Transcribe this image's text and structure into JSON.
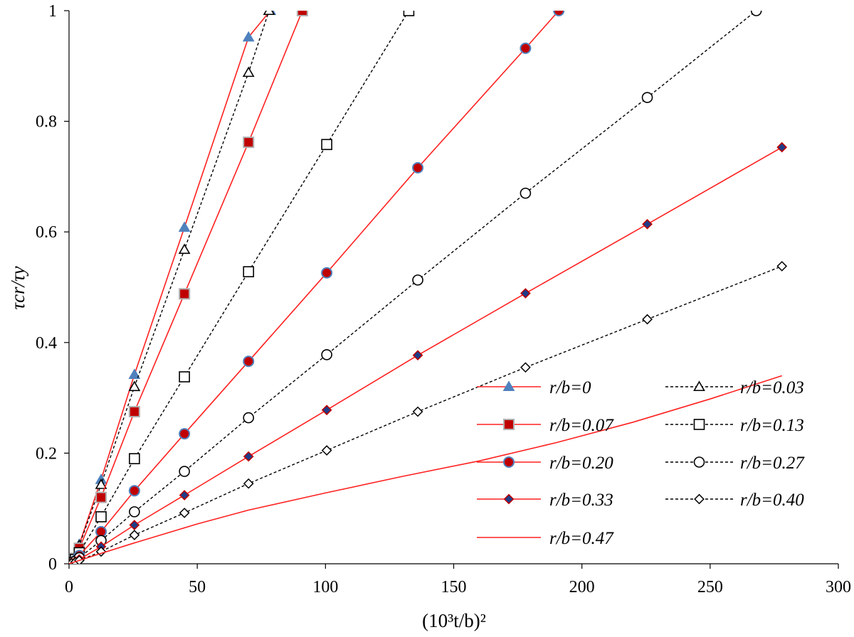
{
  "chart_data": {
    "type": "line",
    "title": "",
    "xlabel": "(10³t/b)²",
    "ylabel": "τcr/τy",
    "xlim": [
      0,
      300
    ],
    "ylim": [
      0,
      1
    ],
    "xticks": [
      "0",
      "50",
      "100",
      "150",
      "200",
      "250",
      "300"
    ],
    "yticks": [
      "0",
      "0.2",
      "0.4",
      "0.6",
      "0.8",
      "1"
    ],
    "grid": false,
    "legend_position": "bottom-right",
    "series": [
      {
        "name": "r/b=0",
        "color": "#ff2020",
        "line": "solid",
        "marker": "triangle",
        "marker_fill": "#4f81bd",
        "points": [
          [
            0,
            0
          ],
          [
            1,
            0.005
          ],
          [
            2.5,
            0.012
          ],
          [
            4,
            0.035
          ],
          [
            12.5,
            0.152
          ],
          [
            25.5,
            0.342
          ],
          [
            45,
            0.608
          ],
          [
            70,
            0.952
          ],
          [
            78.5,
            1.0
          ]
        ]
      },
      {
        "name": "r/b=0.03",
        "color": "#000000",
        "line": "dashed",
        "marker": "triangle-open",
        "marker_fill": "none",
        "points": [
          [
            0,
            0
          ],
          [
            1,
            0.004
          ],
          [
            2.5,
            0.011
          ],
          [
            4,
            0.033
          ],
          [
            12.5,
            0.143
          ],
          [
            25.5,
            0.32
          ],
          [
            45,
            0.568
          ],
          [
            70,
            0.888
          ],
          [
            78,
            1.0
          ]
        ]
      },
      {
        "name": "r/b=0.07",
        "color": "#ff2020",
        "line": "solid",
        "marker": "square",
        "marker_fill": "#c00000",
        "points": [
          [
            0,
            0
          ],
          [
            1,
            0.004
          ],
          [
            2.5,
            0.01
          ],
          [
            4,
            0.028
          ],
          [
            12.5,
            0.12
          ],
          [
            25.5,
            0.275
          ],
          [
            45,
            0.488
          ],
          [
            70,
            0.762
          ],
          [
            91,
            1.0
          ]
        ]
      },
      {
        "name": "r/b=0.13",
        "color": "#000000",
        "line": "dashed",
        "marker": "square-open",
        "marker_fill": "none",
        "points": [
          [
            0,
            0
          ],
          [
            1,
            0.003
          ],
          [
            2.5,
            0.008
          ],
          [
            4,
            0.02
          ],
          [
            12.5,
            0.085
          ],
          [
            25.5,
            0.19
          ],
          [
            45,
            0.338
          ],
          [
            70,
            0.528
          ],
          [
            100.5,
            0.758
          ],
          [
            132.5,
            1.0
          ]
        ]
      },
      {
        "name": "r/b=0.20",
        "color": "#ff2020",
        "line": "solid",
        "marker": "circle",
        "marker_fill": "#c00000",
        "points": [
          [
            0,
            0
          ],
          [
            1,
            0.002
          ],
          [
            2.5,
            0.006
          ],
          [
            4,
            0.015
          ],
          [
            12.5,
            0.058
          ],
          [
            25.5,
            0.132
          ],
          [
            45,
            0.235
          ],
          [
            70,
            0.366
          ],
          [
            100.5,
            0.526
          ],
          [
            136,
            0.716
          ],
          [
            178,
            0.932
          ],
          [
            191,
            1.0
          ]
        ]
      },
      {
        "name": "r/b=0.27",
        "color": "#000000",
        "line": "dashed",
        "marker": "circle-open",
        "marker_fill": "none",
        "points": [
          [
            0,
            0
          ],
          [
            1,
            0.002
          ],
          [
            2.5,
            0.005
          ],
          [
            4,
            0.011
          ],
          [
            12.5,
            0.042
          ],
          [
            25.5,
            0.094
          ],
          [
            45,
            0.167
          ],
          [
            70,
            0.264
          ],
          [
            100.5,
            0.378
          ],
          [
            136,
            0.513
          ],
          [
            178,
            0.67
          ],
          [
            225.5,
            0.843
          ],
          [
            268,
            1.0
          ]
        ]
      },
      {
        "name": "r/b=0.33",
        "color": "#ff2020",
        "line": "solid",
        "marker": "diamond",
        "marker_fill": "#1f3c88",
        "points": [
          [
            0,
            0
          ],
          [
            1,
            0.002
          ],
          [
            2.5,
            0.004
          ],
          [
            4,
            0.008
          ],
          [
            12.5,
            0.031
          ],
          [
            25.5,
            0.07
          ],
          [
            45,
            0.124
          ],
          [
            70,
            0.194
          ],
          [
            100.5,
            0.278
          ],
          [
            136,
            0.377
          ],
          [
            178,
            0.489
          ],
          [
            225.5,
            0.614
          ],
          [
            278,
            0.753
          ]
        ]
      },
      {
        "name": "r/b=0.40",
        "color": "#000000",
        "line": "dashed",
        "marker": "diamond-open",
        "marker_fill": "none",
        "points": [
          [
            0,
            0
          ],
          [
            1,
            0.001
          ],
          [
            2.5,
            0.003
          ],
          [
            4,
            0.006
          ],
          [
            12.5,
            0.022
          ],
          [
            25.5,
            0.052
          ],
          [
            45,
            0.092
          ],
          [
            70,
            0.145
          ],
          [
            100.5,
            0.205
          ],
          [
            136,
            0.275
          ],
          [
            178,
            0.355
          ],
          [
            225.5,
            0.442
          ],
          [
            278,
            0.538
          ]
        ]
      },
      {
        "name": "r/b=0.47",
        "color": "#ff2020",
        "line": "solid",
        "marker": "none",
        "marker_fill": "none",
        "points": [
          [
            0,
            0
          ],
          [
            10,
            0.015
          ],
          [
            25,
            0.037
          ],
          [
            50,
            0.072
          ],
          [
            70,
            0.097
          ],
          [
            100,
            0.128
          ],
          [
            130,
            0.158
          ],
          [
            160,
            0.186
          ],
          [
            190,
            0.219
          ],
          [
            220,
            0.256
          ],
          [
            250,
            0.298
          ],
          [
            278,
            0.34
          ]
        ]
      }
    ]
  }
}
